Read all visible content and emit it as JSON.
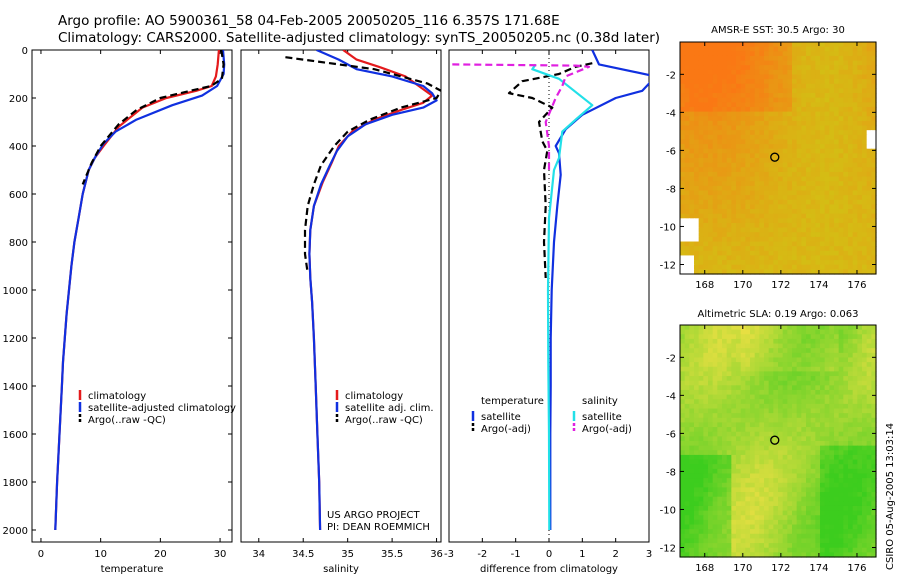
{
  "header": {
    "line1": "Argo profile: AO 5900361_58 04-Feb-2005 20050205_116 6.357S 171.68E",
    "line2": "Climatology: CARS2000. Satellite-adjusted climatology: synTS_20050205.nc (0.38d later)"
  },
  "footer_stamp": "CSIRO 05-Aug-2005 13:03:14",
  "colors": {
    "red": "#e41a1c",
    "blue": "#1030e0",
    "black": "#000000",
    "cyan": "#22e0e8",
    "magenta": "#e020e0"
  },
  "chart_data": [
    {
      "type": "line",
      "id": "temperature",
      "xlabel": "temperature",
      "xlim": [
        -1.5,
        32
      ],
      "ylim": [
        2050,
        0
      ],
      "xticks": [
        0,
        10,
        20,
        30
      ],
      "yticks": [
        0,
        200,
        400,
        600,
        800,
        1000,
        1200,
        1400,
        1600,
        1800,
        2000
      ],
      "legend_pos": "lower-right",
      "series": [
        {
          "name": "climatology",
          "color": "red",
          "style": "solid",
          "points": [
            [
              29.8,
              0
            ],
            [
              29.6,
              60
            ],
            [
              29.3,
              110
            ],
            [
              28.6,
              150
            ],
            [
              26,
              170
            ],
            [
              21,
              200
            ],
            [
              17,
              240
            ],
            [
              13,
              320
            ],
            [
              10.5,
              400
            ],
            [
              9,
              450
            ],
            [
              8,
              500
            ],
            [
              7,
              600
            ],
            [
              6.3,
              700
            ],
            [
              5.6,
              800
            ],
            [
              5.1,
              900
            ],
            [
              4.7,
              1000
            ],
            [
              4.3,
              1100
            ],
            [
              4,
              1200
            ],
            [
              3.7,
              1300
            ],
            [
              3.5,
              1400
            ],
            [
              3.3,
              1500
            ],
            [
              3.1,
              1600
            ],
            [
              2.9,
              1700
            ],
            [
              2.7,
              1800
            ],
            [
              2.55,
              1900
            ],
            [
              2.4,
              2000
            ]
          ]
        },
        {
          "name": "satellite-adjusted climatology",
          "color": "blue",
          "style": "solid",
          "points": [
            [
              30.5,
              0
            ],
            [
              30.7,
              60
            ],
            [
              30.6,
              100
            ],
            [
              29.5,
              150
            ],
            [
              27,
              190
            ],
            [
              22,
              230
            ],
            [
              16,
              290
            ],
            [
              12.5,
              340
            ],
            [
              10.5,
              390
            ],
            [
              9,
              450
            ],
            [
              8,
              500
            ],
            [
              7,
              600
            ],
            [
              6.3,
              700
            ],
            [
              5.6,
              800
            ],
            [
              5.1,
              900
            ],
            [
              4.7,
              1000
            ],
            [
              4.3,
              1100
            ],
            [
              4,
              1200
            ],
            [
              3.7,
              1300
            ],
            [
              3.5,
              1400
            ],
            [
              3.3,
              1500
            ],
            [
              3.1,
              1600
            ],
            [
              2.9,
              1700
            ],
            [
              2.7,
              1800
            ],
            [
              2.55,
              1900
            ],
            [
              2.4,
              2000
            ]
          ]
        },
        {
          "name": "Argo(..raw -QC)",
          "color": "black",
          "style": "dashed",
          "points": [
            [
              30.2,
              0
            ],
            [
              30.6,
              60
            ],
            [
              30.3,
              120
            ],
            [
              28.5,
              150
            ],
            [
              25,
              170
            ],
            [
              20,
              200
            ],
            [
              16,
              250
            ],
            [
              13,
              310
            ],
            [
              11,
              370
            ],
            [
              10,
              400
            ],
            [
              8.5,
              470
            ],
            [
              7,
              560
            ]
          ]
        }
      ]
    },
    {
      "type": "line",
      "id": "salinity",
      "xlabel": "salinity",
      "xlim": [
        33.8,
        36.05
      ],
      "ylim": [
        2050,
        0
      ],
      "xticks": [
        34,
        34.5,
        35,
        35.5,
        36
      ],
      "xticklabels": [
        "34",
        "34.5",
        "35",
        "35.5",
        "36"
      ],
      "legend_pos": "lower-right",
      "annotation": [
        "US ARGO PROJECT",
        "PI: DEAN ROEMMICH"
      ],
      "series": [
        {
          "name": "climatology",
          "color": "red",
          "style": "solid",
          "points": [
            [
              34.95,
              0
            ],
            [
              35.1,
              40
            ],
            [
              35.35,
              70
            ],
            [
              35.65,
              110
            ],
            [
              35.8,
              150
            ],
            [
              35.95,
              190
            ],
            [
              35.85,
              220
            ],
            [
              35.6,
              250
            ],
            [
              35.3,
              290
            ],
            [
              35.05,
              340
            ],
            [
              34.9,
              400
            ],
            [
              34.82,
              470
            ],
            [
              34.72,
              550
            ],
            [
              34.62,
              650
            ],
            [
              34.58,
              750
            ],
            [
              34.57,
              850
            ],
            [
              34.58,
              950
            ],
            [
              34.6,
              1050
            ],
            [
              34.62,
              1200
            ],
            [
              34.64,
              1400
            ],
            [
              34.66,
              1600
            ],
            [
              34.68,
              1800
            ],
            [
              34.69,
              2000
            ]
          ]
        },
        {
          "name": "satellite adj. clim.",
          "color": "blue",
          "style": "solid",
          "points": [
            [
              34.65,
              0
            ],
            [
              34.9,
              40
            ],
            [
              35.1,
              80
            ],
            [
              35.5,
              110
            ],
            [
              35.85,
              150
            ],
            [
              35.95,
              180
            ],
            [
              36.0,
              210
            ],
            [
              35.85,
              240
            ],
            [
              35.5,
              270
            ],
            [
              35.2,
              310
            ],
            [
              35,
              360
            ],
            [
              34.88,
              420
            ],
            [
              34.8,
              480
            ],
            [
              34.7,
              560
            ],
            [
              34.62,
              650
            ],
            [
              34.58,
              750
            ],
            [
              34.57,
              850
            ],
            [
              34.58,
              950
            ],
            [
              34.6,
              1050
            ],
            [
              34.62,
              1200
            ],
            [
              34.64,
              1400
            ],
            [
              34.66,
              1600
            ],
            [
              34.68,
              1800
            ],
            [
              34.69,
              2000
            ]
          ]
        },
        {
          "name": "Argo(..raw -QC)",
          "color": "black",
          "style": "dashed",
          "points": [
            [
              34.3,
              30
            ],
            [
              34.9,
              60
            ],
            [
              35.3,
              80
            ],
            [
              35.6,
              110
            ],
            [
              35.9,
              140
            ],
            [
              36.05,
              170
            ],
            [
              36.0,
              200
            ],
            [
              35.6,
              240
            ],
            [
              35.25,
              290
            ],
            [
              35.0,
              340
            ],
            [
              34.85,
              400
            ],
            [
              34.7,
              480
            ],
            [
              34.62,
              560
            ],
            [
              34.55,
              650
            ],
            [
              34.52,
              750
            ],
            [
              34.52,
              850
            ],
            [
              34.55,
              930
            ]
          ]
        }
      ]
    },
    {
      "type": "line",
      "id": "difference",
      "xlabel": "difference from climatology",
      "xlim": [
        -3,
        3
      ],
      "ylim": [
        2050,
        0
      ],
      "xticks": [
        -3,
        -2,
        -1,
        0,
        1,
        2,
        3
      ],
      "legend": {
        "temperature": {
          "title": "temperature",
          "items": [
            "satellite",
            "Argo(-adj)"
          ]
        },
        "salinity": {
          "title": "salinity",
          "items": [
            "satellite",
            "Argo(-adj)"
          ]
        }
      },
      "series": [
        {
          "name": "temperature satellite",
          "color": "blue",
          "style": "solid",
          "points": [
            [
              1.3,
              0
            ],
            [
              1.5,
              60
            ],
            [
              3.2,
              110
            ],
            [
              2.8,
              170
            ],
            [
              2.0,
              200
            ],
            [
              1.0,
              270
            ],
            [
              0.5,
              330
            ],
            [
              0.2,
              400
            ],
            [
              0.3,
              430
            ],
            [
              0.35,
              520
            ],
            [
              0.25,
              650
            ],
            [
              0.15,
              800
            ],
            [
              0.08,
              1000
            ],
            [
              0.05,
              1200
            ],
            [
              0.05,
              1400
            ],
            [
              0.04,
              1600
            ],
            [
              0.04,
              1800
            ],
            [
              0.04,
              2000
            ]
          ]
        },
        {
          "name": "temperature Argo(-adj)",
          "color": "black",
          "style": "dashed",
          "points": [
            [
              1.3,
              55
            ],
            [
              0.8,
              70
            ],
            [
              0.3,
              100
            ],
            [
              -0.8,
              130
            ],
            [
              -1.2,
              180
            ],
            [
              -0.5,
              200
            ],
            [
              0.1,
              240
            ],
            [
              -0.3,
              300
            ],
            [
              -0.2,
              380
            ],
            [
              -0.05,
              420
            ],
            [
              -0.15,
              500
            ],
            [
              -0.1,
              650
            ],
            [
              -0.15,
              800
            ],
            [
              -0.1,
              950
            ]
          ]
        },
        {
          "name": "salinity satellite",
          "color": "cyan",
          "style": "solid",
          "points": [
            [
              -0.4,
              60
            ],
            [
              -0.5,
              80
            ],
            [
              0.3,
              120
            ],
            [
              1.3,
              230
            ],
            [
              0.8,
              290
            ],
            [
              0.4,
              340
            ],
            [
              0.3,
              450
            ],
            [
              0.15,
              500
            ],
            [
              0.0,
              700
            ],
            [
              -0.03,
              1000
            ],
            [
              -0.02,
              1300
            ],
            [
              0,
              1600
            ],
            [
              0.01,
              2000
            ]
          ]
        },
        {
          "name": "salinity Argo(-adj)",
          "color": "magenta",
          "style": "dashed",
          "points": [
            [
              -2.9,
              60
            ],
            [
              0.8,
              65
            ],
            [
              1.2,
              70
            ],
            [
              0.5,
              110
            ],
            [
              0.4,
              150
            ],
            [
              0.2,
              200
            ],
            [
              -0.1,
              300
            ],
            [
              0.0,
              400
            ],
            [
              0.0,
              500
            ]
          ]
        }
      ]
    },
    {
      "type": "heatmap",
      "id": "sst-map",
      "title": "AMSR-E SST: 30.5 Argo: 30",
      "xlim": [
        166.7,
        177
      ],
      "ylim": [
        -12.5,
        -0.3
      ],
      "xticks": [
        168,
        170,
        172,
        174,
        176
      ],
      "yticks": [
        -2,
        -4,
        -6,
        -8,
        -10,
        -12
      ],
      "marker": [
        171.68,
        -6.357
      ]
    },
    {
      "type": "heatmap",
      "id": "sla-map",
      "title": "Altimetric SLA: 0.19 Argo: 0.063",
      "xlim": [
        166.7,
        177
      ],
      "ylim": [
        -12.5,
        -0.3
      ],
      "xticks": [
        168,
        170,
        172,
        174,
        176
      ],
      "yticks": [
        -2,
        -4,
        -6,
        -8,
        -10,
        -12
      ],
      "marker": [
        171.68,
        -6.357
      ]
    }
  ]
}
